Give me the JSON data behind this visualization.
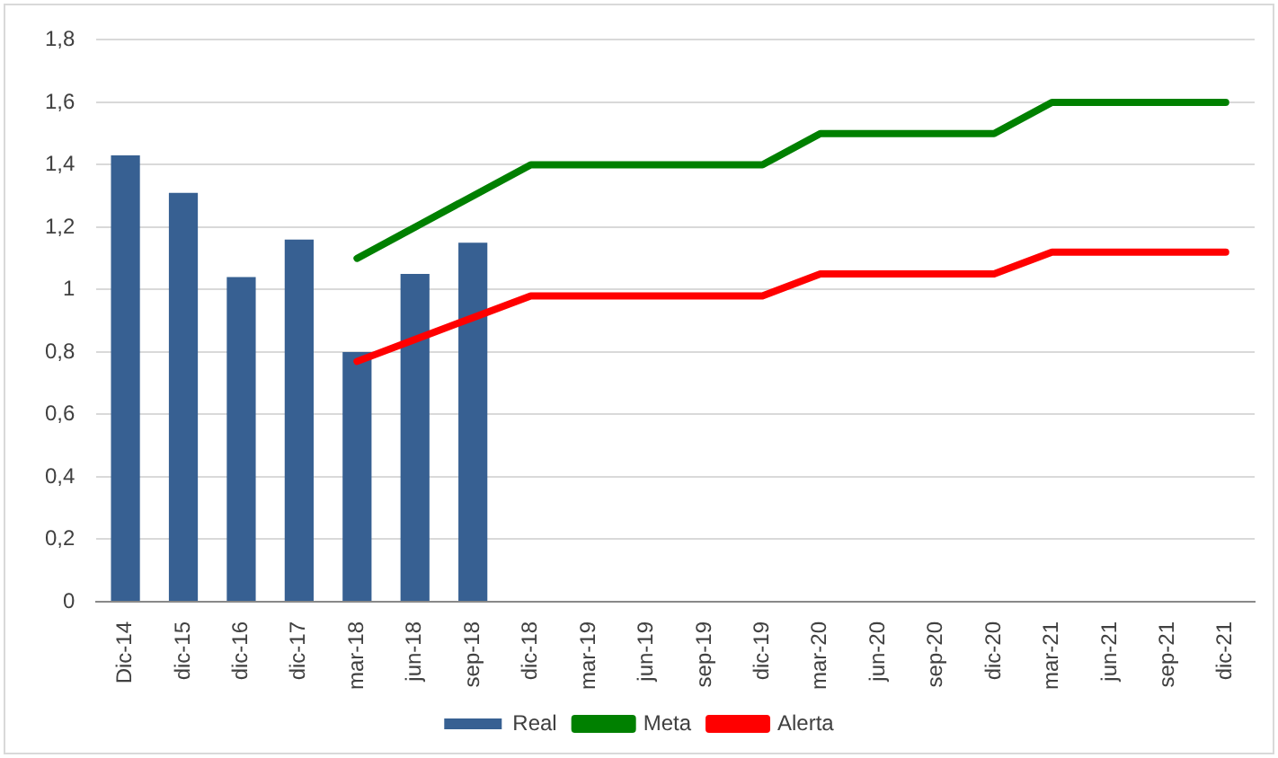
{
  "chart_data": {
    "type": "bar",
    "categories": [
      "Dic-14",
      "dic-15",
      "dic-16",
      "dic-17",
      "mar-18",
      "jun-18",
      "sep-18",
      "dic-18",
      "mar-19",
      "jun-19",
      "sep-19",
      "dic-19",
      "mar-20",
      "jun-20",
      "sep-20",
      "dic-20",
      "mar-21",
      "jun-21",
      "sep-21",
      "dic-21"
    ],
    "series": [
      {
        "name": "Real",
        "color": "#376092",
        "values": [
          1.43,
          1.31,
          1.04,
          1.16,
          0.8,
          1.05,
          1.15,
          null,
          null,
          null,
          null,
          null,
          null,
          null,
          null,
          null,
          null,
          null,
          null,
          null
        ]
      },
      {
        "name": "Meta",
        "type": "line",
        "color": "#008000",
        "values": [
          null,
          null,
          null,
          null,
          1.1,
          1.2,
          1.3,
          1.4,
          1.4,
          1.4,
          1.4,
          1.4,
          1.5,
          1.5,
          1.5,
          1.5,
          1.6,
          1.6,
          1.6,
          1.6
        ]
      },
      {
        "name": "Alerta",
        "type": "line",
        "color": "#ff0000",
        "values": [
          null,
          null,
          null,
          null,
          0.77,
          0.84,
          0.91,
          0.98,
          0.98,
          0.98,
          0.98,
          0.98,
          1.05,
          1.05,
          1.05,
          1.05,
          1.12,
          1.12,
          1.12,
          1.12
        ]
      }
    ],
    "ylim": [
      0,
      1.8
    ],
    "yticks": [
      {
        "value": 0,
        "label": "0"
      },
      {
        "value": 0.2,
        "label": "0,2"
      },
      {
        "value": 0.4,
        "label": "0,4"
      },
      {
        "value": 0.6,
        "label": "0,6"
      },
      {
        "value": 0.8,
        "label": "0,8"
      },
      {
        "value": 1,
        "label": "1"
      },
      {
        "value": 1.2,
        "label": "1,2"
      },
      {
        "value": 1.4,
        "label": "1,4"
      },
      {
        "value": 1.6,
        "label": "1,6"
      },
      {
        "value": 1.8,
        "label": "1,8"
      }
    ],
    "grid": "y",
    "legend": "bottom",
    "marker": "none"
  }
}
